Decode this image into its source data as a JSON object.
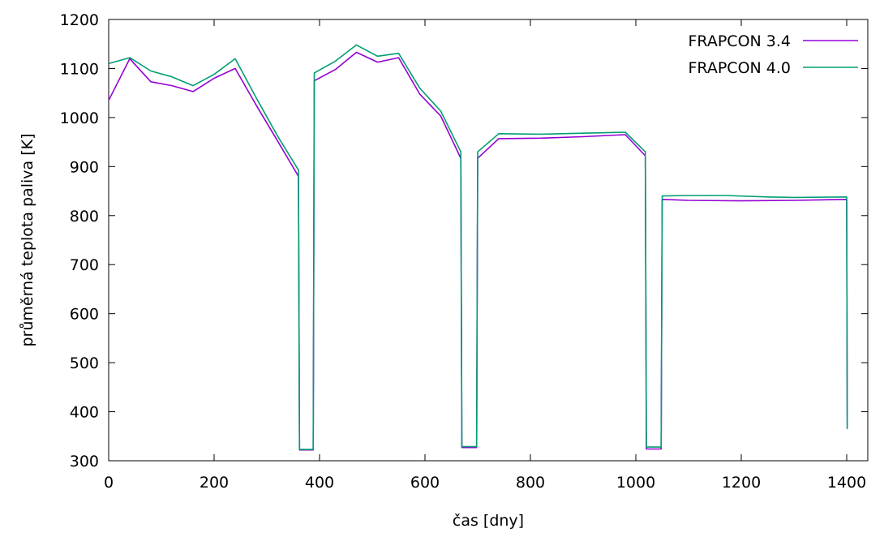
{
  "chart_data": {
    "type": "line",
    "title": "",
    "xlabel": "čas [dny]",
    "ylabel": "průměrná teplota paliva [K]",
    "xlim": [
      0,
      1440
    ],
    "ylim": [
      300,
      1200
    ],
    "xticks": [
      0,
      200,
      400,
      600,
      800,
      1000,
      1200,
      1400
    ],
    "yticks": [
      300,
      400,
      500,
      600,
      700,
      800,
      900,
      1000,
      1100,
      1200
    ],
    "legend": "top-right",
    "grid": false,
    "series": [
      {
        "name": "FRAPCON 3.4",
        "color": "#9400d3",
        "points": [
          [
            0,
            1035
          ],
          [
            40,
            1120
          ],
          [
            80,
            1073
          ],
          [
            120,
            1065
          ],
          [
            160,
            1053
          ],
          [
            200,
            1080
          ],
          [
            240,
            1100
          ],
          [
            280,
            1025
          ],
          [
            320,
            953
          ],
          [
            360,
            880
          ],
          [
            362,
            322
          ],
          [
            388,
            322
          ],
          [
            390,
            1075
          ],
          [
            430,
            1098
          ],
          [
            470,
            1133
          ],
          [
            510,
            1113
          ],
          [
            550,
            1122
          ],
          [
            590,
            1048
          ],
          [
            630,
            1003
          ],
          [
            668,
            917
          ],
          [
            670,
            327
          ],
          [
            698,
            327
          ],
          [
            700,
            917
          ],
          [
            740,
            957
          ],
          [
            820,
            958
          ],
          [
            900,
            961
          ],
          [
            980,
            965
          ],
          [
            1018,
            922
          ],
          [
            1020,
            324
          ],
          [
            1048,
            324
          ],
          [
            1050,
            833
          ],
          [
            1100,
            831
          ],
          [
            1200,
            830
          ],
          [
            1300,
            831
          ],
          [
            1400,
            833
          ],
          [
            1401,
            365
          ]
        ]
      },
      {
        "name": "FRAPCON 4.0",
        "color": "#009e73",
        "points": [
          [
            0,
            1110
          ],
          [
            40,
            1122
          ],
          [
            80,
            1095
          ],
          [
            120,
            1083
          ],
          [
            160,
            1065
          ],
          [
            200,
            1088
          ],
          [
            240,
            1120
          ],
          [
            280,
            1040
          ],
          [
            320,
            963
          ],
          [
            360,
            893
          ],
          [
            362,
            323
          ],
          [
            388,
            323
          ],
          [
            390,
            1091
          ],
          [
            430,
            1115
          ],
          [
            470,
            1148
          ],
          [
            510,
            1125
          ],
          [
            550,
            1131
          ],
          [
            590,
            1060
          ],
          [
            630,
            1013
          ],
          [
            668,
            930
          ],
          [
            670,
            329
          ],
          [
            698,
            329
          ],
          [
            700,
            930
          ],
          [
            740,
            967
          ],
          [
            820,
            966
          ],
          [
            900,
            968
          ],
          [
            980,
            970
          ],
          [
            1018,
            930
          ],
          [
            1020,
            328
          ],
          [
            1048,
            328
          ],
          [
            1050,
            840
          ],
          [
            1100,
            841
          ],
          [
            1170,
            841
          ],
          [
            1250,
            838
          ],
          [
            1300,
            837
          ],
          [
            1400,
            838
          ],
          [
            1401,
            365
          ]
        ]
      }
    ]
  }
}
